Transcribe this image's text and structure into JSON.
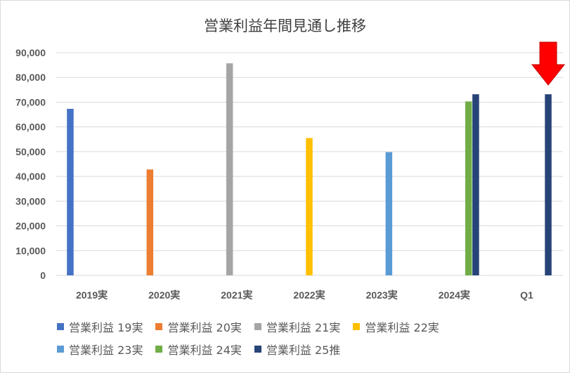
{
  "chart_data": {
    "type": "bar",
    "title": "営業利益年間見通し推移",
    "categories": [
      "2019実",
      "2020実",
      "2021実",
      "2022実",
      "2023実",
      "2024実",
      "Q1"
    ],
    "ylim": [
      0,
      90000
    ],
    "yticks": [
      "0",
      "10,000",
      "20,000",
      "30,000",
      "40,000",
      "50,000",
      "60,000",
      "70,000",
      "80,000",
      "90,000"
    ],
    "grid": true,
    "legend_position": "bottom",
    "series": [
      {
        "name": "営業利益 19実",
        "color": "#4472c4",
        "values": [
          67300,
          null,
          null,
          null,
          null,
          null,
          null
        ]
      },
      {
        "name": "営業利益 20実",
        "color": "#ed7d31",
        "values": [
          null,
          42800,
          null,
          null,
          null,
          null,
          null
        ]
      },
      {
        "name": "営業利益 21実",
        "color": "#a5a5a5",
        "values": [
          null,
          null,
          85700,
          null,
          null,
          null,
          null
        ]
      },
      {
        "name": "営業利益 22実",
        "color": "#ffc000",
        "values": [
          null,
          null,
          null,
          55500,
          null,
          null,
          null
        ]
      },
      {
        "name": "営業利益 23実",
        "color": "#5b9bd5",
        "values": [
          null,
          null,
          null,
          null,
          49800,
          null,
          null
        ]
      },
      {
        "name": "営業利益 24実",
        "color": "#70ad47",
        "values": [
          null,
          null,
          null,
          null,
          null,
          70300,
          null
        ]
      },
      {
        "name": "営業利益 25推",
        "color": "#264478",
        "values": [
          null,
          null,
          null,
          null,
          null,
          73200,
          73200
        ]
      }
    ],
    "annotation": {
      "type": "arrow-down",
      "color": "#ff0000",
      "target_category": "Q1"
    }
  }
}
